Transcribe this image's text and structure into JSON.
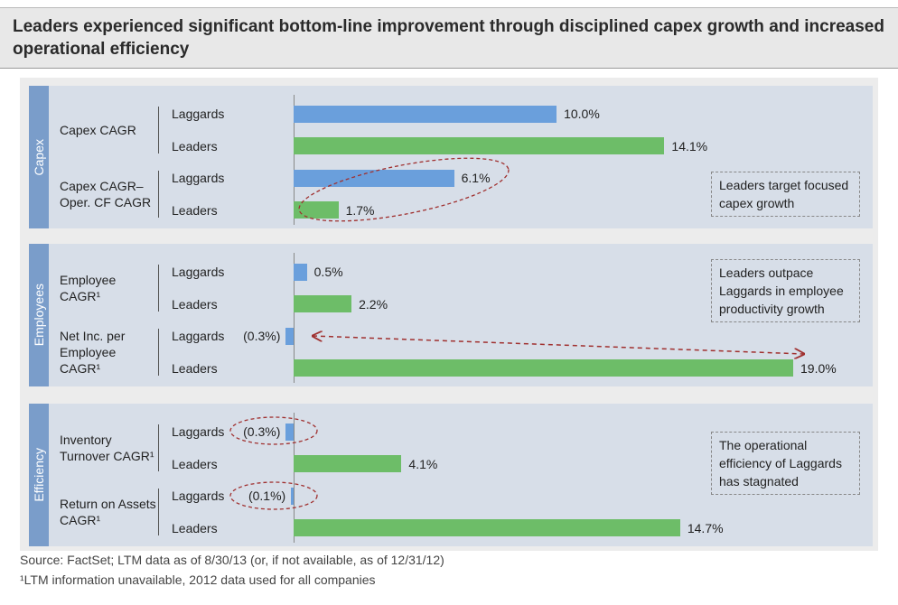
{
  "chart_data": {
    "type": "bar",
    "orientation": "horizontal",
    "title": "Leaders experienced significant bottom-line improvement through disciplined capex growth and increased operational efficiency",
    "xlim": [
      -1,
      19
    ],
    "panels": [
      {
        "name": "Capex",
        "categories": [
          "Capex CAGR",
          "Capex CAGR– Oper. CF CAGR"
        ],
        "series": [
          {
            "name": "Laggards",
            "color": "#6a9fdc",
            "values": [
              10.0,
              6.1
            ],
            "value_labels": [
              "10.0%",
              "6.1%"
            ]
          },
          {
            "name": "Leaders",
            "color": "#6dbd68",
            "values": [
              14.1,
              1.7
            ],
            "value_labels": [
              "14.1%",
              "1.7%"
            ]
          }
        ],
        "annotation": "Leaders target focused capex growth"
      },
      {
        "name": "Employees",
        "categories": [
          "Employee CAGR¹",
          "Net Inc. per Employee CAGR¹"
        ],
        "series": [
          {
            "name": "Laggards",
            "color": "#6a9fdc",
            "values": [
              0.5,
              -0.3
            ],
            "value_labels": [
              "0.5%",
              "(0.3%)"
            ]
          },
          {
            "name": "Leaders",
            "color": "#6dbd68",
            "values": [
              2.2,
              19.0
            ],
            "value_labels": [
              "2.2%",
              "19.0%"
            ]
          }
        ],
        "annotation": "Leaders outpace Laggards in employee productivity growth"
      },
      {
        "name": "Efficiency",
        "categories": [
          "Inventory Turnover CAGR¹",
          "Return on Assets CAGR¹"
        ],
        "series": [
          {
            "name": "Laggards",
            "color": "#6a9fdc",
            "values": [
              -0.3,
              -0.1
            ],
            "value_labels": [
              "(0.3%)",
              "(0.1%)"
            ]
          },
          {
            "name": "Leaders",
            "color": "#6dbd68",
            "values": [
              4.1,
              14.7
            ],
            "value_labels": [
              "4.1%",
              "14.7%"
            ]
          }
        ],
        "annotation": "The operational efficiency of Laggards has stagnated"
      }
    ],
    "source": "Source: FactSet; LTM data as of 8/30/13 (or, if not available, as of 12/31/12)",
    "footnote": "¹LTM information unavailable, 2012 data used for all companies"
  }
}
